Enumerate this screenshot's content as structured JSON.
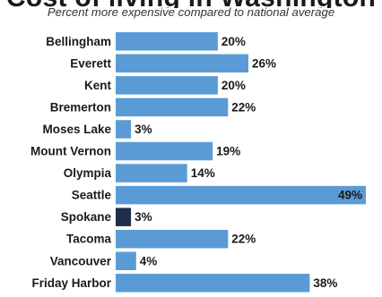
{
  "title_fragment": "Cost of living in Washington",
  "subtitle": "Percent more expensive compared to national average",
  "colors": {
    "bar": "#5b9bd5",
    "highlight": "#1f2d4d",
    "text": "#1a1a1a"
  },
  "chart_data": {
    "type": "bar",
    "orientation": "horizontal",
    "title": "",
    "subtitle": "Percent more expensive compared to national average",
    "xlabel": "",
    "ylabel": "",
    "xlim": [
      0,
      49
    ],
    "grid": false,
    "legend": "none",
    "unit": "%",
    "highlighted_category": "Spokane",
    "categories": [
      "Bellingham",
      "Everett",
      "Kent",
      "Bremerton",
      "Moses Lake",
      "Mount Vernon",
      "Olympia",
      "Seattle",
      "Spokane",
      "Tacoma",
      "Vancouver",
      "Friday Harbor"
    ],
    "values": [
      20,
      26,
      20,
      22,
      3,
      19,
      14,
      49,
      3,
      22,
      4,
      38
    ],
    "value_labels": [
      "20%",
      "26%",
      "20%",
      "22%",
      "3%",
      "19%",
      "14%",
      "49%",
      "3%",
      "22%",
      "4%",
      "38%"
    ]
  }
}
